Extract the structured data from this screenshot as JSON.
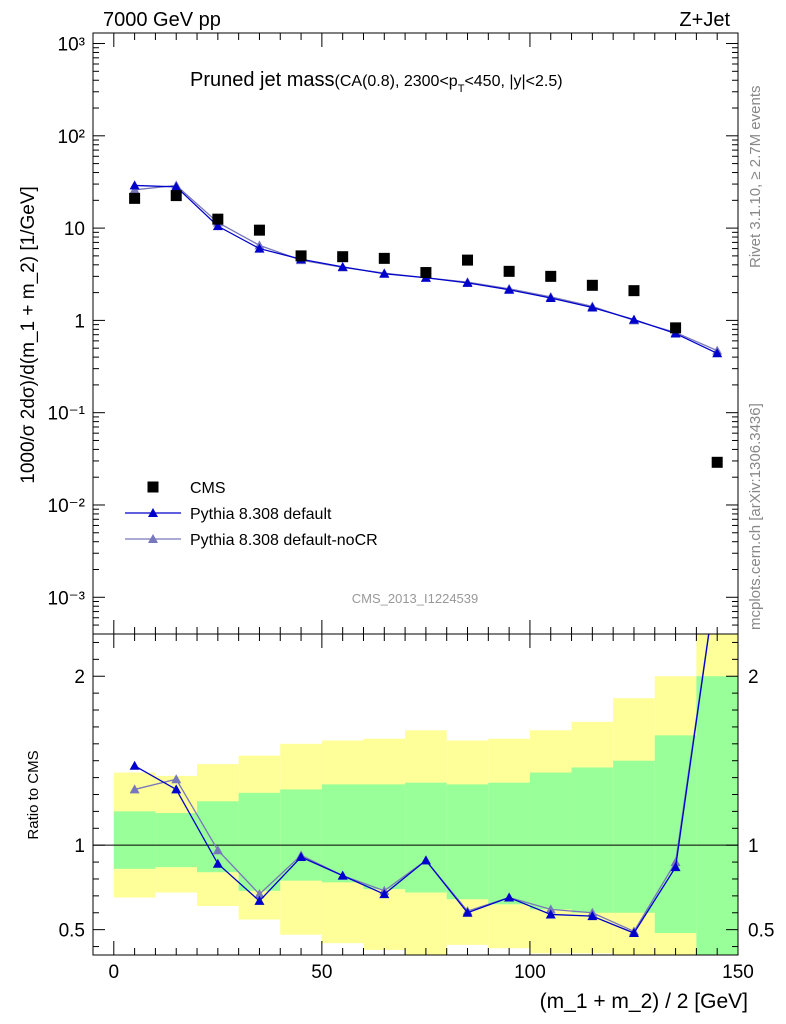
{
  "header": {
    "left": "7000 GeV pp",
    "right": "Z+Jet"
  },
  "side_labels": {
    "top": "Rivet 3.1.10, ≥ 2.7M events",
    "bottom": "mcplots.cern.ch [arXiv:1306.3436]"
  },
  "chart_data": [
    {
      "type": "scatter",
      "title_main": "Pruned jet mass",
      "title_sub_1": "(CA(0.8), 2300<p",
      "title_sub_T": "T",
      "title_sub_2": "<450, |y|<2.5)",
      "watermark": "CMS_2013_I1224539",
      "ylabel": "1000/σ 2dσ)/d(m_1 + m_2) [1/GeV]",
      "yscale": "log",
      "ylim": [
        0.0004,
        1300
      ],
      "xlim": [
        -5,
        150
      ],
      "y_tick_labels": [
        "10⁻³",
        "10⁻²",
        "10⁻¹",
        "1",
        "10",
        "10²",
        "10³"
      ],
      "x": [
        5,
        15,
        25,
        35,
        45,
        55,
        65,
        75,
        85,
        95,
        105,
        115,
        125,
        135,
        145
      ],
      "series": [
        {
          "name": "CMS",
          "marker": "square",
          "color": "#000000",
          "values": [
            21,
            22.5,
            12.5,
            9.5,
            5.0,
            4.9,
            4.7,
            3.3,
            4.5,
            3.4,
            3.0,
            2.4,
            2.1,
            0.83,
            0.029
          ]
        },
        {
          "name": "Pythia 8.308 default",
          "marker": "triangle",
          "color": "#0000cc",
          "values": [
            29,
            28,
            10.5,
            6.0,
            4.6,
            3.8,
            3.2,
            2.9,
            2.55,
            2.15,
            1.75,
            1.38,
            1.02,
            0.72,
            0.44
          ]
        },
        {
          "name": "Pythia 8.308 default-noCR",
          "marker": "triangle",
          "color": "#7777bb",
          "values": [
            26,
            29,
            11.5,
            6.5,
            4.5,
            3.75,
            3.25,
            2.9,
            2.6,
            2.2,
            1.8,
            1.42,
            1.0,
            0.74,
            0.47
          ]
        }
      ],
      "legend_position": "bottom-left"
    },
    {
      "type": "line",
      "ylabel": "Ratio to CMS",
      "xlabel": "(m_1 + m_2) / 2 [GeV]",
      "ylim": [
        0.35,
        2.25
      ],
      "xlim": [
        -5,
        150
      ],
      "x_ticks": [
        0,
        50,
        100,
        150
      ],
      "y_ticks": [
        0.5,
        1,
        2
      ],
      "reference_line": 1,
      "bin_edges": [
        0,
        10,
        20,
        30,
        40,
        50,
        60,
        70,
        80,
        90,
        100,
        110,
        120,
        130,
        140,
        150
      ],
      "band_green": [
        [
          0.86,
          1.2
        ],
        [
          0.87,
          1.19
        ],
        [
          0.84,
          1.26
        ],
        [
          0.73,
          1.31
        ],
        [
          0.79,
          1.33
        ],
        [
          0.78,
          1.36
        ],
        [
          0.74,
          1.36
        ],
        [
          0.72,
          1.37
        ],
        [
          0.68,
          1.36
        ],
        [
          0.65,
          1.37
        ],
        [
          0.62,
          1.43
        ],
        [
          0.6,
          1.46
        ],
        [
          0.6,
          1.5
        ],
        [
          0.48,
          1.65
        ],
        [
          0.35,
          2.0
        ]
      ],
      "band_yellow": [
        [
          0.69,
          1.43
        ],
        [
          0.72,
          1.41
        ],
        [
          0.64,
          1.48
        ],
        [
          0.56,
          1.53
        ],
        [
          0.47,
          1.6
        ],
        [
          0.42,
          1.62
        ],
        [
          0.38,
          1.63
        ],
        [
          0.35,
          1.68
        ],
        [
          0.41,
          1.62
        ],
        [
          0.39,
          1.63
        ],
        [
          0.36,
          1.68
        ],
        [
          0.36,
          1.73
        ],
        [
          0.35,
          1.87
        ],
        [
          0.35,
          2.0
        ],
        [
          0.35,
          2.25
        ]
      ],
      "series": [
        {
          "name": "Pythia 8.308 default",
          "color": "#0000cc",
          "values": [
            1.47,
            1.33,
            0.89,
            0.67,
            0.93,
            0.82,
            0.71,
            0.91,
            0.6,
            0.69,
            0.59,
            0.58,
            0.48,
            0.87,
            2.6
          ]
        },
        {
          "name": "Pythia 8.308 default-noCR",
          "color": "#7777bb",
          "values": [
            1.33,
            1.39,
            0.97,
            0.71,
            0.94,
            0.82,
            0.73,
            0.91,
            0.61,
            0.69,
            0.62,
            0.6,
            0.49,
            0.9,
            2.6
          ]
        }
      ]
    }
  ]
}
